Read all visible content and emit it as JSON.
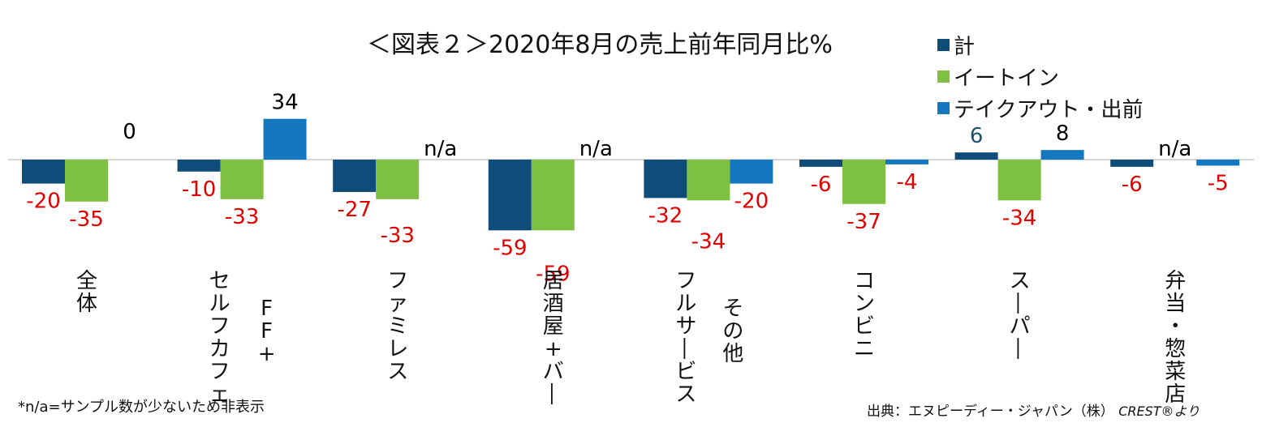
{
  "title": "＜図表２＞2020年8月の売上前年同月比%",
  "legend": [
    {
      "label": "計",
      "color": "#0e4d7a"
    },
    {
      "label": "イートイン",
      "color": "#7ec142"
    },
    {
      "label": "テイクアウト・出前",
      "color": "#1478c0"
    }
  ],
  "note": "*n/a=サンプル数が少ないため非表示",
  "source": {
    "text": "出典：エヌピーディー・ジャパン（株）",
    "credit": "CREST®より"
  },
  "chart_data": {
    "type": "bar",
    "categories": [
      "全体",
      "セルフカフェ\nFF+",
      "ファミレス",
      "居酒屋+バー",
      "フルサービス\nその他",
      "コンビニ",
      "スーパー",
      "弁当・惣菜店"
    ],
    "series": [
      {
        "name": "計",
        "values": [
          -20,
          -10,
          -27,
          -59,
          -32,
          -6,
          6,
          -6
        ],
        "labels": [
          "-20",
          "-10",
          "-27",
          "-59",
          "-32",
          "-6",
          "6",
          "-6"
        ]
      },
      {
        "name": "イートイン",
        "values": [
          -35,
          -33,
          -33,
          -59,
          -34,
          -37,
          -34,
          null
        ],
        "labels": [
          "-35",
          "-33",
          "-33",
          "-59",
          "-34",
          "-37",
          "-34",
          "n/a"
        ]
      },
      {
        "name": "テイクアウト・出前",
        "values": [
          0,
          34,
          null,
          null,
          -20,
          -4,
          8,
          -5
        ],
        "labels": [
          "0",
          "34",
          "n/a",
          "n/a",
          "-20",
          "-4",
          "8",
          "-5"
        ]
      }
    ],
    "colors": {
      "negative_label": "#e00000",
      "positive_label": "#000000",
      "positive_label_alt": "#1d5070"
    }
  }
}
